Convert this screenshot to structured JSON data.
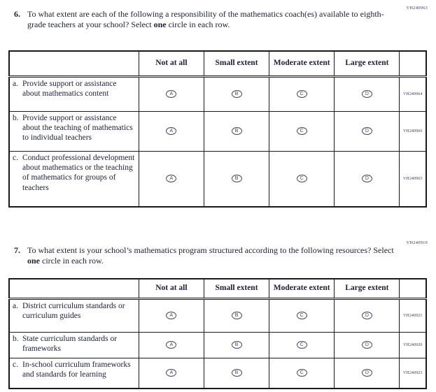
{
  "q6": {
    "number": "6.",
    "code": "VH240963",
    "text_before": "To what extent are each of the following a responsibility of the mathematics coach(es) available to eighth-grade teachers at your school? Select ",
    "bold_word": "one",
    "text_after": " circle in each row.",
    "table": {
      "columns": [
        "Not at all",
        "Small extent",
        "Moderate extent",
        "Large extent"
      ],
      "bubble_letters": [
        "A",
        "B",
        "C",
        "D"
      ],
      "rows": [
        {
          "letter": "a.",
          "label": "Provide support or assistance about mathematics content",
          "code": "VH240964"
        },
        {
          "letter": "b.",
          "label": "Provide support or assistance about the teaching of mathematics to individual teachers",
          "code": "VH240966"
        },
        {
          "letter": "c.",
          "label": "Conduct professional development about mathematics or the teaching of mathematics for groups of teachers",
          "code": "VH240965"
        }
      ]
    }
  },
  "q7": {
    "number": "7.",
    "code": "VH240919",
    "text_before": "To what extent is your school’s mathematics program structured according to the following resources? Select ",
    "bold_word": "one",
    "text_after": " circle in each row.",
    "table": {
      "columns": [
        "Not at all",
        "Small extent",
        "Moderate extent",
        "Large extent"
      ],
      "bubble_letters": [
        "A",
        "B",
        "C",
        "D"
      ],
      "rows": [
        {
          "letter": "a.",
          "label": "District curriculum standards or curriculum guides",
          "code": "VH240921"
        },
        {
          "letter": "b.",
          "label": "State curriculum standards or frameworks",
          "code": "VH240920"
        },
        {
          "letter": "c.",
          "label": "In-school curriculum frameworks and standards for learning",
          "code": "VH240923"
        }
      ]
    }
  }
}
